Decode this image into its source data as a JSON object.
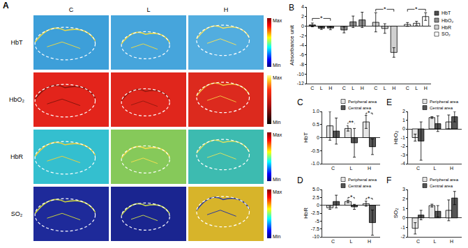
{
  "panel_A": {
    "label": "A",
    "columns": [
      "C",
      "L",
      "H"
    ],
    "rows": [
      "HbT",
      "HbO₂",
      "HbR",
      "SO₂"
    ],
    "colorbar_labels": [
      "Max",
      "Min"
    ]
  },
  "chart_data": [
    {
      "type": "bar",
      "title": "B",
      "y_label": "Absorbance unit",
      "categories": [
        "C",
        "L",
        "H",
        "C",
        "L",
        "H",
        "C",
        "L",
        "H",
        "C",
        "L",
        "H"
      ],
      "series": [
        {
          "name": "HbT",
          "color": "#4d4d4d",
          "values": [
            0.25,
            -0.45,
            -0.4,
            null,
            null,
            null,
            null,
            null,
            null,
            null,
            null,
            null
          ],
          "errors": [
            0.4,
            0.25,
            0.35,
            null,
            null,
            null,
            null,
            null,
            null,
            null,
            null,
            null
          ]
        },
        {
          "name": "HbO₂",
          "color": "#8c8c8c",
          "values": [
            null,
            null,
            null,
            -0.8,
            0.9,
            1.3,
            null,
            null,
            null,
            null,
            null,
            null
          ],
          "errors": [
            null,
            null,
            null,
            0.6,
            1.2,
            1.6,
            null,
            null,
            null,
            null,
            null,
            null
          ]
        },
        {
          "name": "HbR",
          "color": "#d0d0d0",
          "values": [
            null,
            null,
            null,
            null,
            null,
            null,
            0.8,
            -0.5,
            -5.5,
            null,
            null,
            null
          ],
          "errors": [
            null,
            null,
            null,
            null,
            null,
            null,
            2.0,
            1.0,
            1.0,
            null,
            null,
            null
          ]
        },
        {
          "name": "SO₂",
          "color": "#ffffff",
          "values": [
            null,
            null,
            null,
            null,
            null,
            null,
            null,
            null,
            null,
            0.35,
            0.6,
            2.0
          ],
          "errors": [
            null,
            null,
            null,
            null,
            null,
            null,
            null,
            null,
            null,
            0.4,
            0.4,
            0.8
          ]
        }
      ],
      "ylim": [
        -12,
        4
      ],
      "yticks": [
        -12,
        -10,
        -8,
        -6,
        -4,
        -2,
        0,
        2,
        4
      ],
      "grid": false,
      "legend": "right",
      "significance": [
        {
          "from": 0,
          "to": 2,
          "label": "*"
        },
        {
          "from": 6,
          "to": 8,
          "label": "*"
        },
        {
          "from": 9,
          "to": 11,
          "label": "*"
        }
      ]
    },
    {
      "type": "bar",
      "title": "C",
      "y_label": "HbT",
      "categories": [
        "C",
        "L",
        "H"
      ],
      "series": [
        {
          "name": "Peripheral area",
          "color": "#e6e6e6",
          "values": [
            0.45,
            0.35,
            0.6
          ],
          "errors": [
            0.55,
            0.1,
            0.25
          ]
        },
        {
          "name": "Central area",
          "color": "#555555",
          "values": [
            0.25,
            -0.2,
            -0.35
          ],
          "errors": [
            0.5,
            0.55,
            0.3
          ]
        }
      ],
      "ylim": [
        -1,
        1
      ],
      "yticks": [
        {
          "value": -1,
          "label": "-1.0"
        },
        -0.5,
        0,
        0.5,
        {
          "value": 1,
          "label": "1.0"
        }
      ],
      "grid": false,
      "legend": "top right",
      "significance": [
        {
          "category": "L",
          "label": "**"
        },
        {
          "category": "H",
          "label": "*"
        }
      ]
    },
    {
      "type": "bar",
      "title": "D",
      "y_label": "HbR",
      "categories": [
        "C",
        "L",
        "H"
      ],
      "series": [
        {
          "name": "Peripheral area",
          "color": "#e6e6e6",
          "values": [
            -0.8,
            1.2,
            0.5
          ],
          "errors": [
            0.5,
            0.4,
            0.8
          ]
        },
        {
          "name": "Central area",
          "color": "#555555",
          "values": [
            1.2,
            -0.5,
            -5.5
          ],
          "errors": [
            2.0,
            0.8,
            4.0
          ]
        }
      ],
      "ylim": [
        -10,
        5
      ],
      "yticks": [
        -10,
        -7.5,
        -5,
        -2.5,
        0,
        2.5,
        {
          "value": 5,
          "label": "5.0"
        }
      ],
      "grid": false,
      "legend": "top right",
      "significance": [
        {
          "category": "L",
          "label": "*"
        },
        {
          "category": "H",
          "label": "*"
        }
      ]
    },
    {
      "type": "bar",
      "title": "E",
      "y_label": "HbO₂",
      "categories": [
        "C",
        "L",
        "H"
      ],
      "series": [
        {
          "name": "Peripheral area",
          "color": "#e6e6e6",
          "values": [
            -1.0,
            1.3,
            0.8
          ],
          "errors": [
            0.4,
            0.1,
            0.8
          ]
        },
        {
          "name": "Central area",
          "color": "#555555",
          "values": [
            -1.4,
            0.6,
            1.4
          ],
          "errors": [
            2.2,
            0.9,
            0.6
          ]
        }
      ],
      "ylim": [
        -4,
        2
      ],
      "yticks": [
        -4,
        -3,
        -2,
        -1,
        0,
        1,
        2
      ],
      "grid": false,
      "legend": "top right"
    },
    {
      "type": "bar",
      "title": "F",
      "y_label": "SO₂",
      "categories": [
        "C",
        "L",
        "H"
      ],
      "series": [
        {
          "name": "Peripheral area",
          "color": "#e6e6e6",
          "values": [
            -1.1,
            1.3,
            0.8
          ],
          "errors": [
            0.6,
            0.15,
            1.1
          ]
        },
        {
          "name": "Central area",
          "color": "#555555",
          "values": [
            0.3,
            0.7,
            2.1
          ],
          "errors": [
            0.5,
            0.6,
            0.7
          ]
        }
      ],
      "ylim": [
        -2,
        3
      ],
      "yticks": [
        -2,
        -1,
        0,
        1,
        2,
        3
      ],
      "grid": false,
      "legend": "top right"
    }
  ]
}
